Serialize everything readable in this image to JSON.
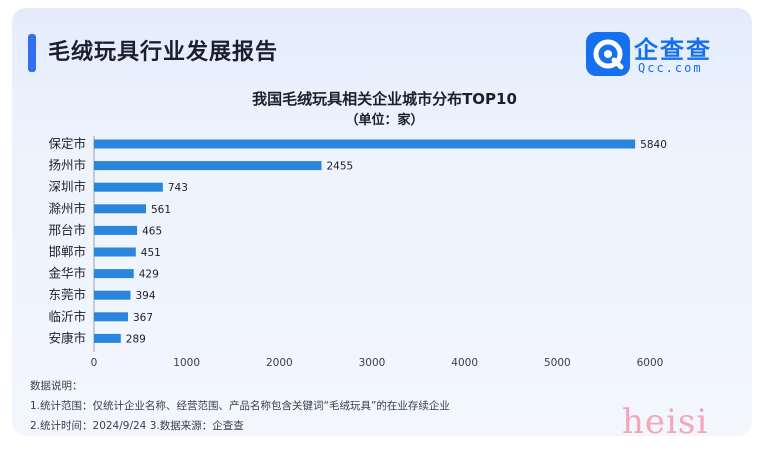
{
  "header": {
    "title": "毛绒玩具行业发展报告"
  },
  "logo": {
    "cn": "企查查",
    "en": "Qcc.com",
    "icon": "qcc-logo-icon"
  },
  "chart_data": {
    "type": "bar",
    "orientation": "horizontal",
    "title": "我国毛绒玩具相关企业城市分布TOP10",
    "subtitle": "（单位：家）",
    "categories": [
      "保定市",
      "扬州市",
      "深圳市",
      "滁州市",
      "邢台市",
      "邯郸市",
      "金华市",
      "东莞市",
      "临沂市",
      "安康市"
    ],
    "values": [
      5840,
      2455,
      743,
      561,
      465,
      451,
      429,
      394,
      367,
      289
    ],
    "xlim": [
      0,
      6000
    ],
    "xticks": [
      "0",
      "1000",
      "2000",
      "3000",
      "4000",
      "5000",
      "6000"
    ],
    "grid": false,
    "bar_color": "#2a86dc"
  },
  "notes": {
    "heading": "数据说明：",
    "line1": "1.统计范围：仅统计企业名称、经营范围、产品名称包含关键词“毛绒玩具”的在业存续企业",
    "line2": "2.统计时间：2024/9/24    3.数据来源：企查查"
  },
  "watermark": "heisi"
}
